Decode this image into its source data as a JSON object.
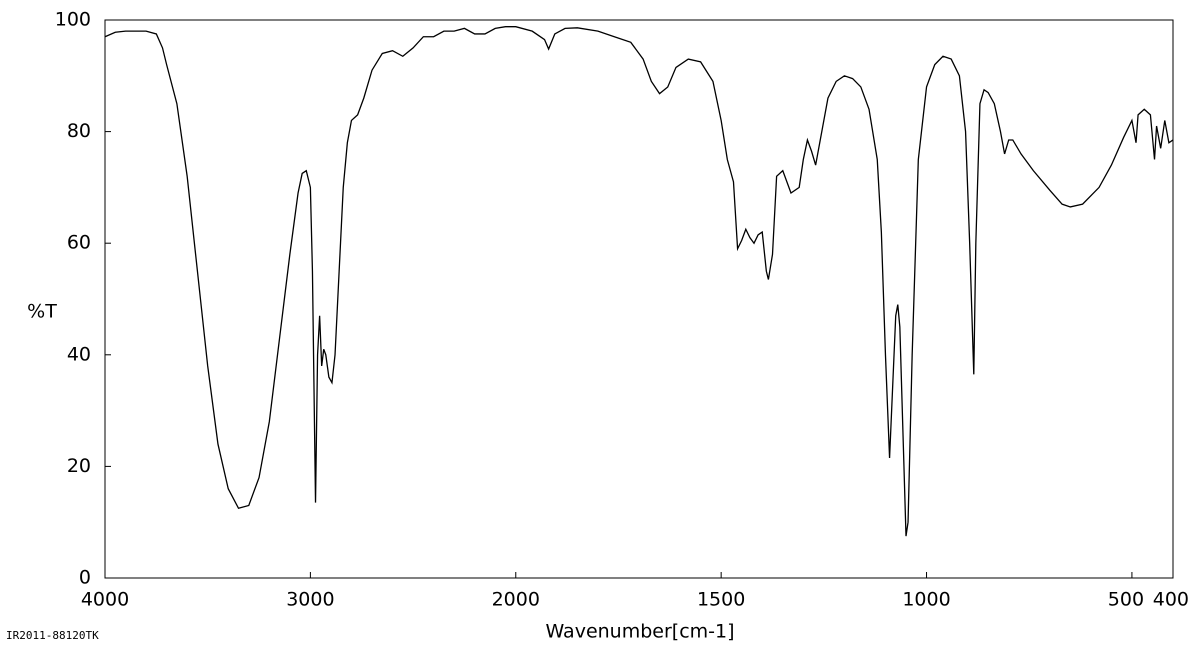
{
  "chart_data": {
    "type": "line",
    "xlabel": "Wavenumber[cm-1]",
    "ylabel": "%T",
    "footnote": "IR2011-88120TK",
    "xlim": [
      4000,
      400
    ],
    "xticks": [
      4000,
      3000,
      2000,
      1500,
      1000,
      500,
      400
    ],
    "xbreak": 2000,
    "xbreak_ratio": 2,
    "ylim": [
      0,
      100
    ],
    "yticks": [
      0,
      20,
      40,
      60,
      80,
      100
    ],
    "color": "#000000",
    "x": [
      4000,
      3950,
      3900,
      3800,
      3750,
      3720,
      3700,
      3650,
      3600,
      3550,
      3500,
      3450,
      3400,
      3350,
      3300,
      3250,
      3200,
      3150,
      3100,
      3060,
      3040,
      3020,
      3000,
      2990,
      2975,
      2965,
      2955,
      2945,
      2935,
      2925,
      2910,
      2895,
      2880,
      2860,
      2840,
      2820,
      2800,
      2770,
      2740,
      2700,
      2650,
      2600,
      2550,
      2500,
      2450,
      2400,
      2350,
      2300,
      2250,
      2200,
      2150,
      2100,
      2050,
      2000,
      1960,
      1930,
      1920,
      1905,
      1880,
      1850,
      1800,
      1760,
      1720,
      1690,
      1670,
      1650,
      1630,
      1610,
      1580,
      1550,
      1520,
      1500,
      1485,
      1470,
      1460,
      1450,
      1440,
      1430,
      1420,
      1410,
      1400,
      1390,
      1385,
      1375,
      1365,
      1350,
      1330,
      1310,
      1300,
      1290,
      1280,
      1270,
      1260,
      1240,
      1220,
      1200,
      1180,
      1160,
      1140,
      1120,
      1110,
      1100,
      1090,
      1085,
      1075,
      1070,
      1065,
      1055,
      1050,
      1045,
      1035,
      1020,
      1000,
      980,
      960,
      940,
      920,
      905,
      895,
      885,
      880,
      870,
      860,
      850,
      835,
      820,
      810,
      800,
      790,
      770,
      740,
      700,
      670,
      650,
      620,
      580,
      550,
      520,
      500,
      490,
      485,
      470,
      455,
      445,
      440,
      430,
      420,
      410,
      400
    ],
    "values": [
      97,
      97.8,
      98,
      98,
      97.5,
      95,
      92,
      85,
      72,
      55,
      38,
      24,
      16,
      12.5,
      13,
      18,
      28,
      43,
      58,
      69,
      72.5,
      73,
      70,
      55,
      13.5,
      40,
      47,
      38,
      41,
      40,
      36,
      35,
      40,
      55,
      70,
      78,
      82,
      83,
      86,
      91,
      94,
      94.5,
      93.5,
      95,
      97,
      97,
      98,
      98,
      98.5,
      97.5,
      97.5,
      98.5,
      98.8,
      98.8,
      98,
      96.5,
      94.8,
      97.5,
      98.5,
      98.6,
      98,
      97,
      96,
      93,
      89,
      86.8,
      88,
      91.5,
      93,
      92.5,
      89,
      82,
      75,
      71,
      59,
      60.5,
      62.5,
      61,
      60,
      61.5,
      62,
      55,
      53.5,
      58,
      72,
      73,
      69,
      70,
      75,
      78.5,
      76.5,
      74,
      78,
      86,
      89,
      90,
      89.5,
      88,
      84,
      75,
      62,
      40,
      21.5,
      30,
      47,
      49,
      45,
      20,
      7.5,
      10,
      40,
      75,
      88,
      92,
      93.5,
      93,
      90,
      80,
      60,
      36.5,
      60,
      85,
      87.5,
      87,
      85,
      80,
      76,
      78.5,
      78.5,
      76,
      73,
      69.5,
      67,
      66.5,
      67,
      70,
      74,
      79,
      82,
      78,
      83,
      84,
      83,
      75,
      81,
      77,
      82,
      78,
      78.5
    ]
  }
}
